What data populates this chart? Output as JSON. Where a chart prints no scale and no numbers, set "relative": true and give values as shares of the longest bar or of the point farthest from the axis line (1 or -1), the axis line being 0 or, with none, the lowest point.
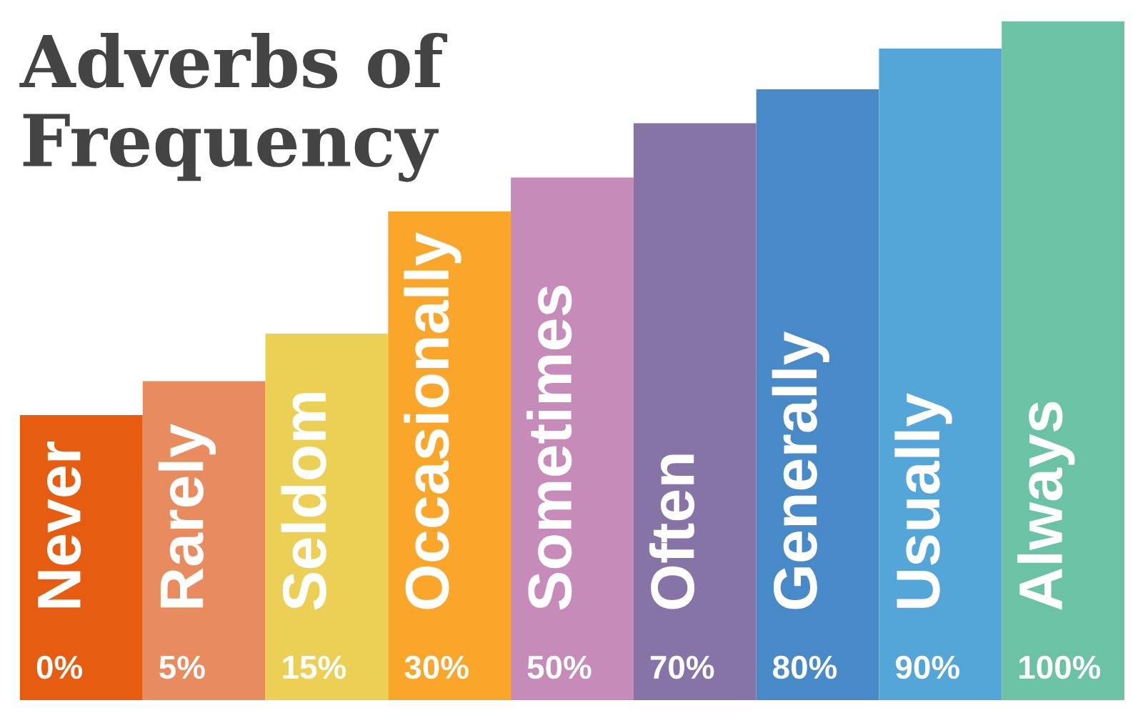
{
  "chart_data": {
    "type": "bar",
    "title": "Adverbs of Frequency",
    "relative": true,
    "categories": [
      "Never",
      "Rarely",
      "Seldom",
      "Occasionally",
      "Sometimes",
      "Often",
      "Generally",
      "Usually",
      "Always"
    ],
    "values": [
      0.42,
      0.47,
      0.54,
      0.72,
      0.77,
      0.85,
      0.9,
      0.96,
      1
    ],
    "colors": [
      "#e65c11",
      "#e88c5f",
      "#ecd056",
      "#f9a62b",
      "#c68bb9",
      "#8774a7",
      "#4889c7",
      "#54a5d8",
      "#6cc2a4"
    ],
    "annotations": [
      "0%",
      "5%",
      "15%",
      "30%",
      "50%",
      "70%",
      "80%",
      "90%",
      "100%"
    ]
  }
}
